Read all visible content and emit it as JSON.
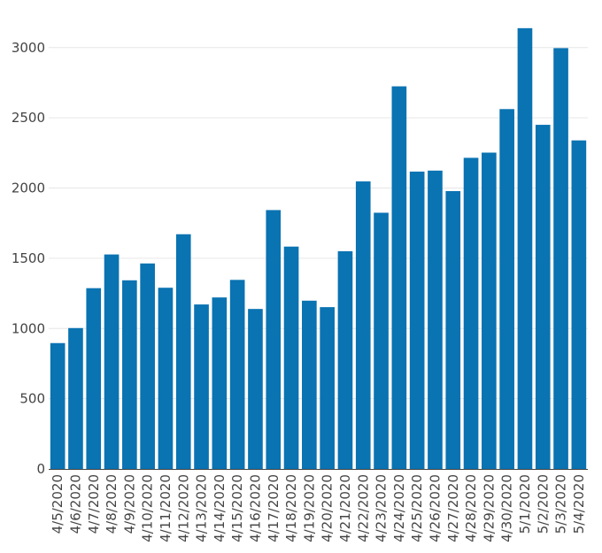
{
  "colors": {
    "bar": "#0a73b2",
    "grid": "#e6e6e6",
    "axis": "#444444",
    "text": "#444444"
  },
  "chart_data": {
    "type": "bar",
    "title": "",
    "xlabel": "",
    "ylabel": "",
    "grid": true,
    "ylim": [
      0,
      3200
    ],
    "yticks": [
      0,
      500,
      1000,
      1500,
      2000,
      2500,
      3000
    ],
    "categories": [
      "4/5/2020",
      "4/6/2020",
      "4/7/2020",
      "4/8/2020",
      "4/9/2020",
      "4/10/2020",
      "4/11/2020",
      "4/12/2020",
      "4/13/2020",
      "4/14/2020",
      "4/15/2020",
      "4/16/2020",
      "4/17/2020",
      "4/18/2020",
      "4/19/2020",
      "4/20/2020",
      "4/21/2020",
      "4/22/2020",
      "4/23/2020",
      "4/24/2020",
      "4/25/2020",
      "4/26/2020",
      "4/27/2020",
      "4/28/2020",
      "4/29/2020",
      "4/30/2020",
      "5/1/2020",
      "5/2/2020",
      "5/3/2020",
      "5/4/2020"
    ],
    "values": [
      896,
      1003,
      1287,
      1527,
      1343,
      1463,
      1290,
      1671,
      1171,
      1221,
      1346,
      1139,
      1843,
      1583,
      1198,
      1152,
      1550,
      2047,
      1824,
      2724,
      2117,
      2124,
      1978,
      2215,
      2252,
      2562,
      3138,
      2450,
      2996,
      2339
    ]
  }
}
